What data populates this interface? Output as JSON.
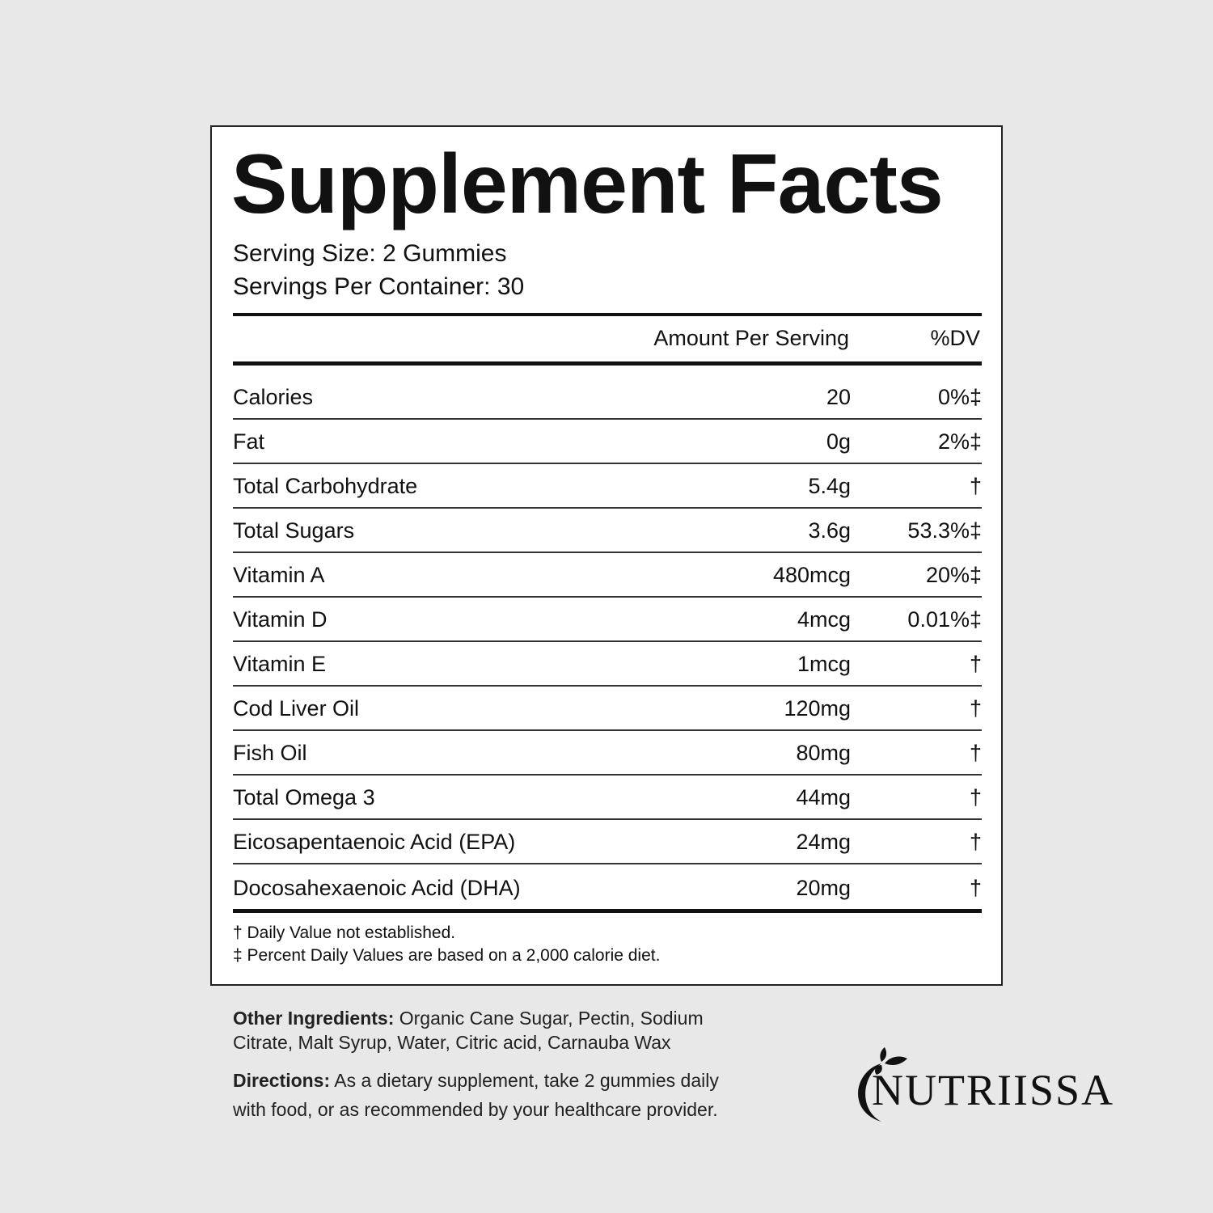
{
  "title": "Supplement Facts",
  "serving_size": "Serving Size: 2 Gummies",
  "servings_per_container": "Servings Per Container: 30",
  "header": {
    "amount": "Amount Per Serving",
    "dv": "%DV"
  },
  "rows": [
    {
      "name": "Calories",
      "amount": "20",
      "dv": "0%‡"
    },
    {
      "name": "Fat",
      "amount": "0g",
      "dv": "2%‡"
    },
    {
      "name": "Total Carbohydrate",
      "amount": "5.4g",
      "dv": "†"
    },
    {
      "name": "Total Sugars",
      "amount": "3.6g",
      "dv": "53.3%‡"
    },
    {
      "name": "Vitamin A",
      "amount": "480mcg",
      "dv": "20%‡"
    },
    {
      "name": "Vitamin D",
      "amount": "4mcg",
      "dv": "0.01%‡"
    },
    {
      "name": "Vitamin E",
      "amount": "1mcg",
      "dv": "†"
    },
    {
      "name": "Cod Liver Oil",
      "amount": "120mg",
      "dv": "†"
    },
    {
      "name": "Fish Oil",
      "amount": "80mg",
      "dv": "†"
    },
    {
      "name": "Total Omega 3",
      "amount": "44mg",
      "dv": "†"
    },
    {
      "name": "Eicosapentaenoic Acid (EPA)",
      "amount": "24mg",
      "dv": "†"
    },
    {
      "name": "Docosahexaenoic Acid (DHA)",
      "amount": "20mg",
      "dv": "†"
    }
  ],
  "footnotes": [
    "† Daily Value not established.",
    "‡ Percent Daily Values are based on a 2,000 calorie diet."
  ],
  "other_ingredients": {
    "label": "Other Ingredients:",
    "line1": " Organic Cane Sugar, Pectin, Sodium",
    "line2": "Citrate, Malt Syrup, Water,  Citric acid, Carnauba Wax"
  },
  "directions": {
    "label": "Directions:",
    "line1": " As a dietary supplement, take 2 gummies daily",
    "line2": "with food, or as recommended by your healthcare provider."
  },
  "brand": "NUTRIISSA"
}
